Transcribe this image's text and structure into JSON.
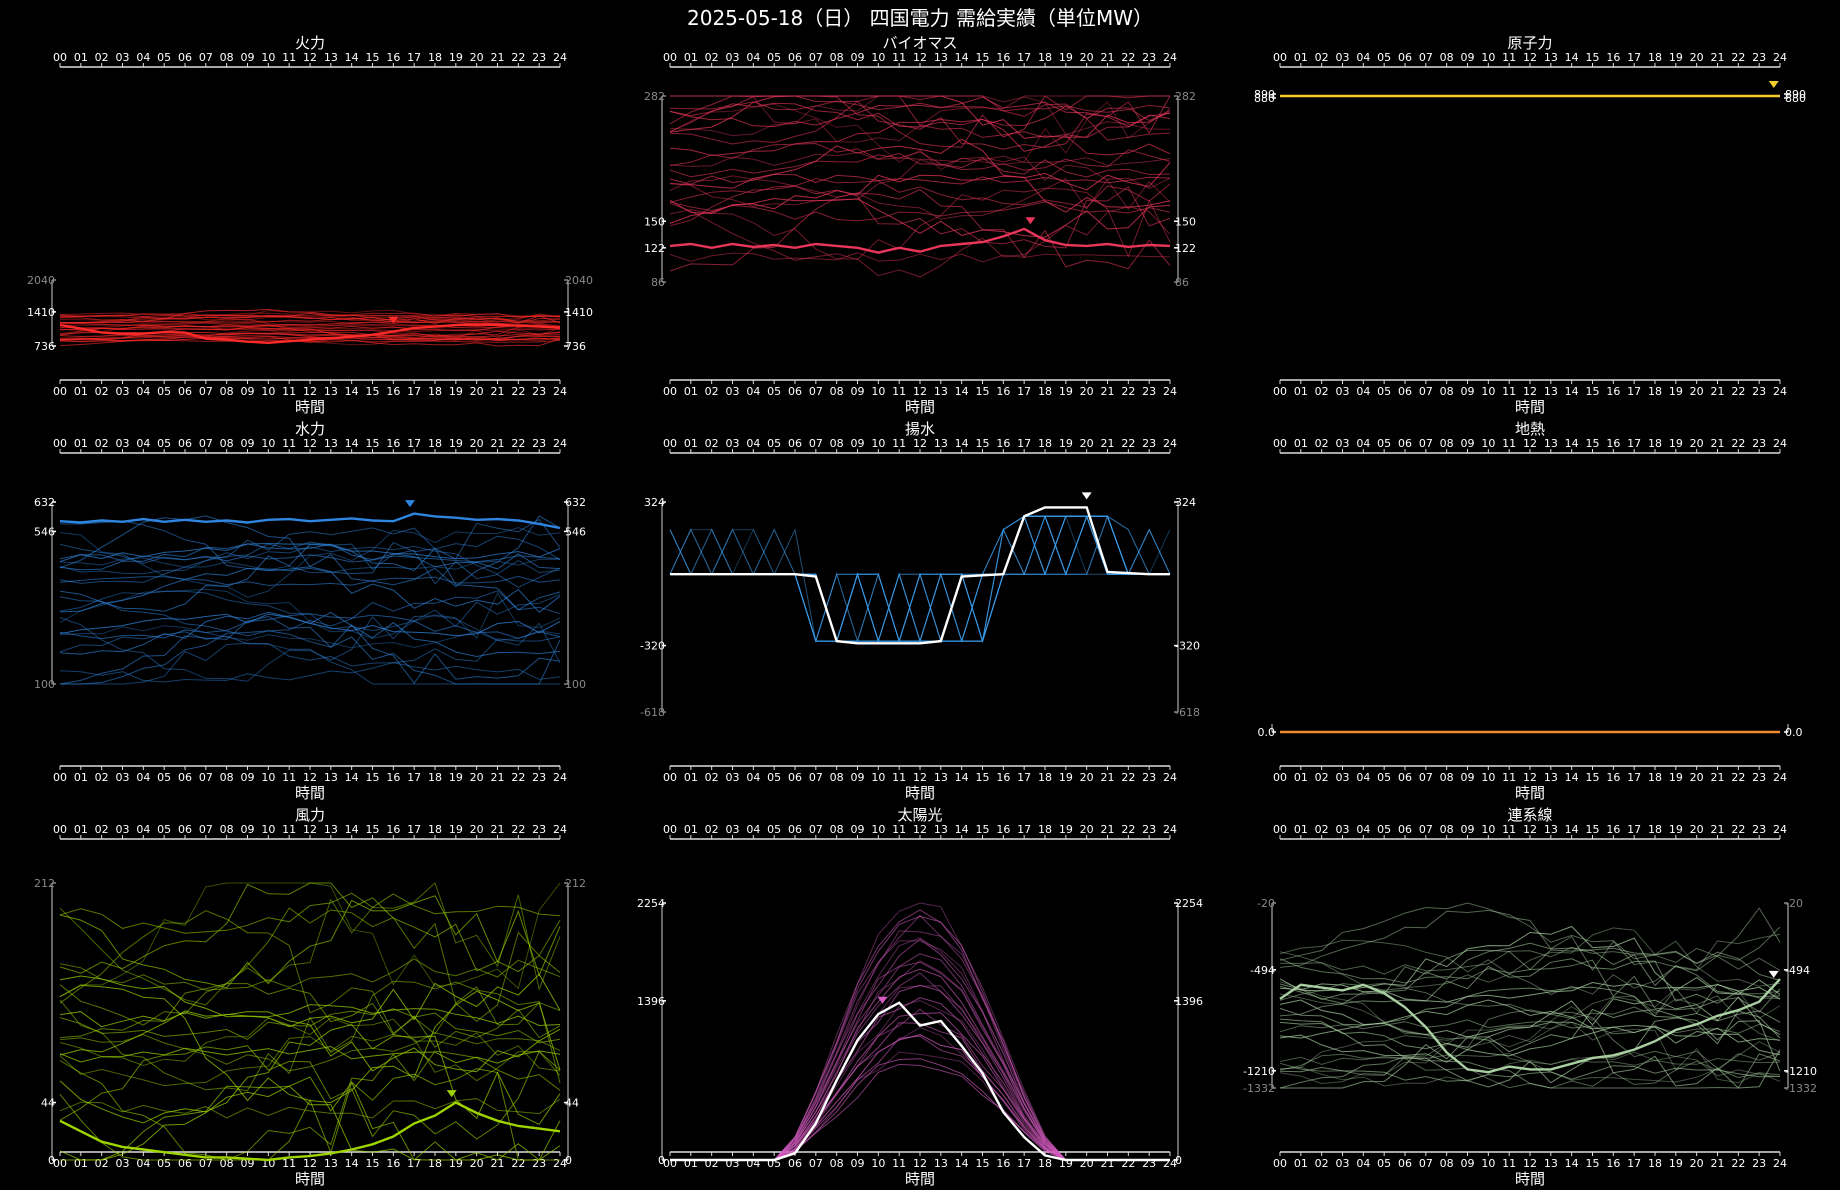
{
  "page": {
    "title": "2025-05-18（日） 四国電力 需給実績（単位MW）",
    "xlabel": "時間"
  },
  "chart_data": [
    {
      "type": "line",
      "title": "火力",
      "color": "#ff2a2a",
      "show_xlabel": true,
      "marker": 16,
      "ylim": [
        736,
        2040
      ],
      "yticks": [
        {
          "v": 2040,
          "label": "2040",
          "c": "#888"
        },
        {
          "v": 1410,
          "label": "1410",
          "c": "#fff"
        },
        {
          "v": 736,
          "label": "736",
          "c": "#fff"
        }
      ],
      "series": [
        {
          "name": "",
          "values": [
            1150,
            1080,
            1000,
            980,
            980,
            1010,
            1000,
            880,
            860,
            820,
            800,
            830,
            860,
            890,
            920,
            960,
            1020,
            1090,
            1120,
            1150,
            1160,
            1150,
            1140,
            1120,
            1100
          ]
        }
      ],
      "band": {
        "lo": 800,
        "hi": 1350,
        "count": 28
      }
    },
    {
      "type": "line",
      "title": "バイオマス",
      "color": "#e8365a",
      "show_xlabel": false,
      "marker": 17.3,
      "ylim": [
        86,
        282
      ],
      "yticks": [
        {
          "v": 282,
          "label": "282",
          "c": "#888"
        },
        {
          "v": 150,
          "label": "150",
          "c": "#fff"
        },
        {
          "v": 122,
          "label": "122",
          "c": "#fff"
        },
        {
          "v": 86,
          "label": "86",
          "c": "#888"
        }
      ],
      "series": [
        {
          "name": "",
          "values": [
            124,
            126,
            122,
            126,
            123,
            125,
            122,
            126,
            124,
            122,
            117,
            122,
            118,
            124,
            126,
            128,
            134,
            142,
            130,
            125,
            124,
            126,
            123,
            125,
            124
          ]
        }
      ],
      "band": {
        "lo": 110,
        "hi": 280,
        "count": 28
      }
    },
    {
      "type": "line",
      "title": "原子力",
      "color": "#f3cc2a",
      "show_xlabel": true,
      "marker": 23.7,
      "ylim": [
        880,
        890
      ],
      "yticks": [
        {
          "v": 890,
          "label": "890",
          "c": "#fff"
        },
        {
          "v": 880,
          "label": "880",
          "c": "#fff"
        }
      ],
      "series": [
        {
          "name": "",
          "values": [
            885,
            885,
            885,
            885,
            885,
            885,
            885,
            885,
            885,
            885,
            885,
            885,
            885,
            885,
            885,
            885,
            885,
            885,
            885,
            885,
            885,
            885,
            885,
            885,
            885
          ]
        }
      ],
      "band": {
        "lo": 885,
        "hi": 885,
        "count": 0
      }
    },
    {
      "type": "line",
      "title": "水力",
      "color": "#2f86e0",
      "show_xlabel": true,
      "marker": 16.8,
      "ylim": [
        100,
        632
      ],
      "yticks": [
        {
          "v": 632,
          "label": "632",
          "c": "#fff"
        },
        {
          "v": 546,
          "label": "546",
          "c": "#fff"
        },
        {
          "v": 100,
          "label": "100",
          "c": "#888"
        }
      ],
      "series": [
        {
          "name": "",
          "values": [
            576,
            572,
            578,
            574,
            582,
            574,
            580,
            574,
            578,
            572,
            580,
            582,
            576,
            580,
            584,
            578,
            576,
            598,
            590,
            586,
            580,
            582,
            578,
            568,
            556
          ]
        }
      ],
      "band": {
        "lo": 120,
        "hi": 520,
        "count": 26
      }
    },
    {
      "type": "line",
      "title": "揚水",
      "color": "#3a9ae6",
      "show_xlabel": true,
      "marker": 20,
      "ylim": [
        -618,
        324
      ],
      "yticks": [
        {
          "v": 324,
          "label": "324",
          "c": "#fff"
        },
        {
          "v": -320,
          "label": "-320",
          "c": "#fff"
        },
        {
          "v": -618,
          "label": "-618",
          "c": "#888"
        }
      ],
      "series": [
        {
          "name": "",
          "values": [
            0,
            0,
            0,
            0,
            0,
            0,
            0,
            -10,
            -300,
            -310,
            -310,
            -310,
            -310,
            -300,
            -10,
            -5,
            0,
            260,
            300,
            300,
            300,
            10,
            5,
            0,
            0
          ]
        }
      ],
      "band": {
        "lo": -320,
        "hi": 300,
        "count": 22
      }
    },
    {
      "type": "line",
      "title": "地熱",
      "color": "#f08a2a",
      "show_xlabel": true,
      "marker": null,
      "ylim": [
        0,
        1
      ],
      "yticks": [
        {
          "v": 0,
          "label": "0.0",
          "c": "#fff"
        }
      ],
      "series": [
        {
          "name": "",
          "values": [
            0,
            0,
            0,
            0,
            0,
            0,
            0,
            0,
            0,
            0,
            0,
            0,
            0,
            0,
            0,
            0,
            0,
            0,
            0,
            0,
            0,
            0,
            0,
            0,
            0
          ]
        }
      ],
      "band": {
        "lo": 0,
        "hi": 0,
        "count": 0
      }
    },
    {
      "type": "line",
      "title": "風力",
      "color": "#9ed400",
      "show_xlabel": true,
      "marker": 18.8,
      "ylim": [
        0,
        212
      ],
      "yticks": [
        {
          "v": 212,
          "label": "212",
          "c": "#888"
        },
        {
          "v": 44,
          "label": "44",
          "c": "#fff"
        },
        {
          "v": 0,
          "label": "0",
          "c": "#fff"
        }
      ],
      "series": [
        {
          "name": "",
          "values": [
            30,
            22,
            14,
            10,
            8,
            6,
            4,
            2,
            2,
            1,
            0,
            2,
            3,
            5,
            8,
            12,
            18,
            28,
            34,
            44,
            36,
            30,
            26,
            24,
            22
          ]
        }
      ],
      "band": {
        "lo": 2,
        "hi": 200,
        "count": 26
      }
    },
    {
      "type": "line",
      "title": "太陽光",
      "color": "#d65cc2",
      "show_xlabel": true,
      "marker": 10.2,
      "ylim": [
        0,
        2254
      ],
      "yticks": [
        {
          "v": 2254,
          "label": "2254",
          "c": "#fff"
        },
        {
          "v": 1396,
          "label": "1396",
          "c": "#fff"
        },
        {
          "v": 0,
          "label": "0",
          "c": "#fff"
        }
      ],
      "series": [
        {
          "name": "",
          "values": [
            0,
            0,
            0,
            0,
            0,
            0,
            60,
            320,
            700,
            1050,
            1280,
            1380,
            1180,
            1220,
            1000,
            760,
            420,
            200,
            40,
            0,
            0,
            0,
            0,
            0,
            0
          ]
        }
      ],
      "band": {
        "lo": 800,
        "hi": 2254,
        "count": 26
      }
    },
    {
      "type": "line",
      "title": "連系線",
      "color": "#a9cfa2",
      "show_xlabel": true,
      "marker": 23.7,
      "ylim": [
        -1332,
        -20
      ],
      "yticks": [
        {
          "v": -20,
          "label": "-20",
          "c": "#888"
        },
        {
          "v": -494,
          "label": "-494",
          "c": "#fff"
        },
        {
          "v": -1210,
          "label": "-1210",
          "c": "#fff"
        },
        {
          "v": -1332,
          "label": "-1332",
          "c": "#888"
        }
      ],
      "series": [
        {
          "name": "",
          "values": [
            -700,
            -600,
            -620,
            -640,
            -600,
            -660,
            -760,
            -900,
            -1080,
            -1200,
            -1220,
            -1180,
            -1200,
            -1200,
            -1160,
            -1120,
            -1100,
            -1060,
            -1000,
            -920,
            -880,
            -820,
            -780,
            -720,
            -560
          ]
        }
      ],
      "band": {
        "lo": -1300,
        "hi": -250,
        "count": 30
      }
    }
  ]
}
